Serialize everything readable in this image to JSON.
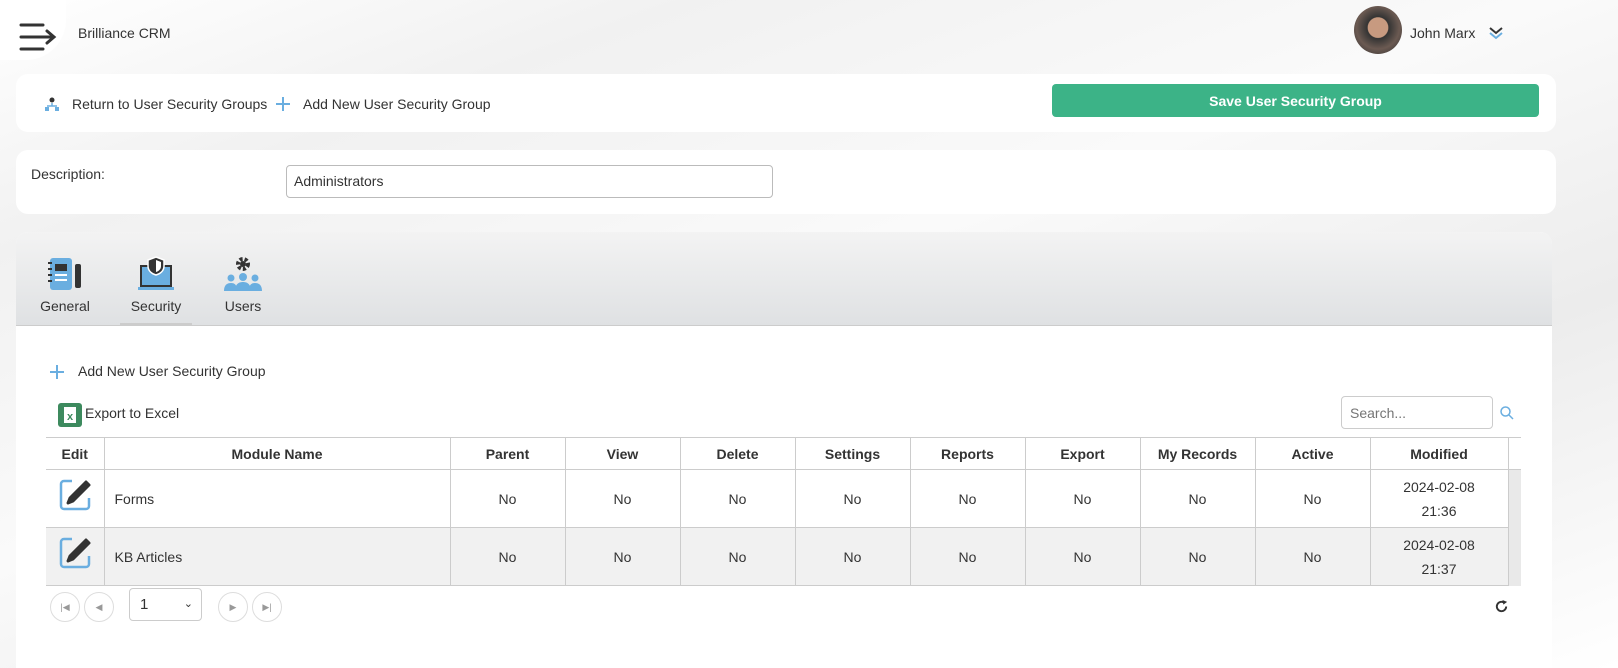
{
  "app": {
    "title": "Brilliance CRM",
    "user_name": "John Marx"
  },
  "toolbar": {
    "return_label": "Return to User Security Groups",
    "add_label": "Add New User Security Group",
    "save_label": "Save User Security Group"
  },
  "form": {
    "description_label": "Description:",
    "description_value": "Administrators"
  },
  "tabs": [
    {
      "label": "General"
    },
    {
      "label": "Security"
    },
    {
      "label": "Users"
    }
  ],
  "grid": {
    "add_label": "Add New User Security Group",
    "export_label": "Export to Excel",
    "search_placeholder": "Search...",
    "columns": [
      "Edit",
      "Module Name",
      "Parent",
      "View",
      "Delete",
      "Settings",
      "Reports",
      "Export",
      "My Records",
      "Active",
      "Modified"
    ],
    "rows": [
      {
        "module": "Forms",
        "parent": "No",
        "view": "No",
        "delete": "No",
        "settings": "No",
        "reports": "No",
        "export": "No",
        "my_records": "No",
        "active": "No",
        "modified_date": "2024-02-08",
        "modified_time": "21:36"
      },
      {
        "module": "KB Articles",
        "parent": "No",
        "view": "No",
        "delete": "No",
        "settings": "No",
        "reports": "No",
        "export": "No",
        "my_records": "No",
        "active": "No",
        "modified_date": "2024-02-08",
        "modified_time": "21:37"
      }
    ],
    "page_value": "1"
  },
  "colors": {
    "accent": "#3cb387",
    "icon_blue": "#6aaee0"
  }
}
